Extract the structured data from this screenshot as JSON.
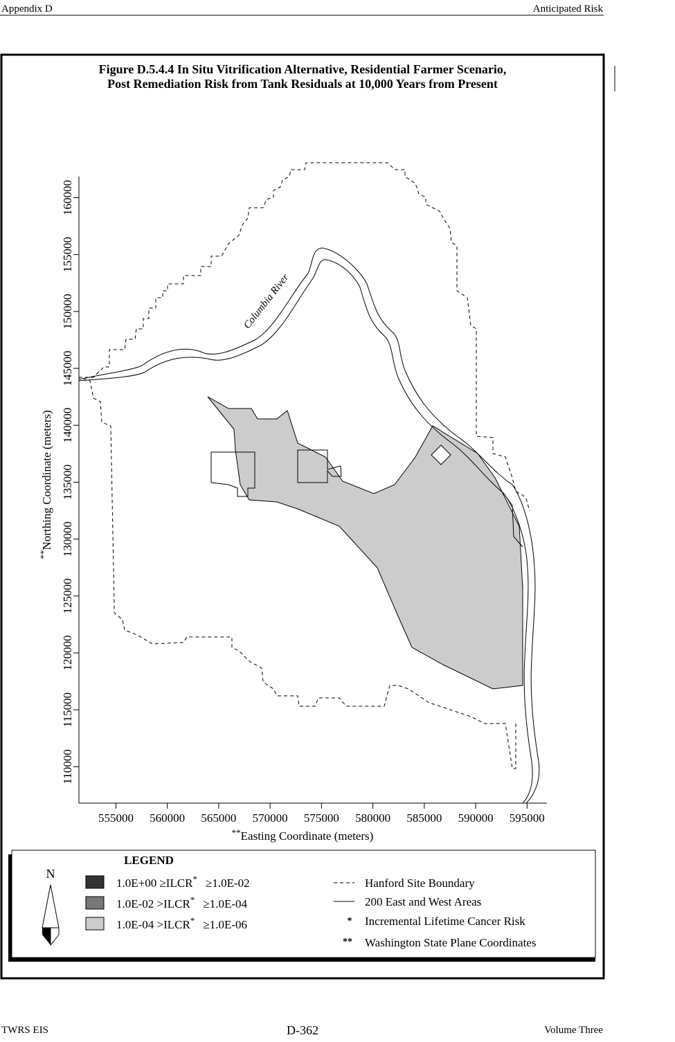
{
  "header": {
    "left": "Appendix D",
    "right": "Anticipated Risk"
  },
  "figure": {
    "title_line1": "Figure D.5.4.4  In Situ Vitrification Alternative, Residential Farmer Scenario,",
    "title_line2": "Post Remediation Risk from Tank Residuals at 10,000 Years from Present",
    "river_label": "Columbia River",
    "xlim": [
      551400,
      597000
    ],
    "ylim": [
      106800,
      162000
    ],
    "xticks": [
      555000,
      560000,
      565000,
      570000,
      575000,
      580000,
      585000,
      590000,
      595000
    ],
    "yticks": [
      110000,
      115000,
      120000,
      125000,
      130000,
      135000,
      140000,
      145000,
      150000,
      155000,
      160000
    ],
    "xlabel_mark": "**",
    "xlabel": "Easting Coordinate (meters)",
    "ylabel_mark": "**",
    "ylabel": "Northing Coordinate (meters)",
    "north": "N",
    "legend": {
      "title": "LEGEND",
      "ranges": [
        {
          "lead": "1.0E+00 ≥ILCR",
          "mark": "*",
          "tail": "≥1.0E-02",
          "color": "#333333"
        },
        {
          "lead": "1.0E-02 >ILCR",
          "mark": "*",
          "tail": "≥1.0E-04",
          "color": "#777777"
        },
        {
          "lead": "1.0E-04 >ILCR",
          "mark": "*",
          "tail": "≥1.0E-06",
          "color": "#cccccc"
        }
      ],
      "boundary": "Hanford Site Boundary",
      "areas": "200 East and West Areas",
      "star1": "*",
      "star1_text": "Incremental Lifetime Cancer Risk",
      "star2": "**",
      "star2_text": "Washington State Plane Coordinates"
    }
  },
  "footer": {
    "left": "TWRS EIS",
    "center": "D-362",
    "right": "Volume Three"
  }
}
